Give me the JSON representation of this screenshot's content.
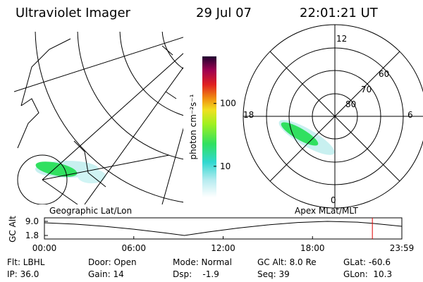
{
  "header": {
    "title": "Ultraviolet Imager",
    "date": "29 Jul 07",
    "time": "22:01:21 UT"
  },
  "colorbar": {
    "label": "photon cm⁻²s⁻¹",
    "lim": [
      3.2,
      560
    ],
    "ticks": [
      10,
      100
    ],
    "log": true
  },
  "polar": {
    "hours": [
      "12",
      "6",
      "18",
      "0"
    ],
    "lats": [
      "60",
      "70",
      "80"
    ]
  },
  "panels": {
    "left": "Geographic Lat/Lon",
    "right": "Apex MLat/MLT"
  },
  "chart_data": {
    "type": "line",
    "y_label": "GC Alt",
    "x": [
      0,
      2,
      4,
      6,
      8,
      9.4,
      11,
      13,
      15,
      17,
      19,
      21,
      22,
      24
    ],
    "values": [
      8.3,
      7.6,
      6.5,
      5.0,
      3.2,
      1.8,
      3.6,
      5.6,
      7.2,
      8.4,
      9.0,
      8.6,
      8.0,
      6.5
    ],
    "color": "#000000",
    "marker_x": 22.02,
    "marker_color": "#e00000",
    "xlim": [
      0,
      24
    ],
    "ylim": [
      1.8,
      9.0
    ],
    "xticks": [
      {
        "value": 0,
        "label": "00:00"
      },
      {
        "value": 6,
        "label": "06:00"
      },
      {
        "value": 12,
        "label": "12:00"
      },
      {
        "value": 18,
        "label": "18:00"
      },
      {
        "value": 24,
        "label": "23:59"
      }
    ],
    "yticks": [
      {
        "value": 1.8,
        "label": "1.8"
      },
      {
        "value": 9.0,
        "label": "9.0"
      }
    ]
  },
  "info": [
    [
      "Flt: LBHL",
      "IP: 36.0"
    ],
    [
      "Door: Open",
      "Gain: 14"
    ],
    [
      "Mode: Normal",
      "Dsp:    -1.9"
    ],
    [
      "GC Alt: 8.0 Re",
      "Seq: 39"
    ],
    [
      "GLat: -60.6",
      "GLon:  10.3"
    ]
  ]
}
